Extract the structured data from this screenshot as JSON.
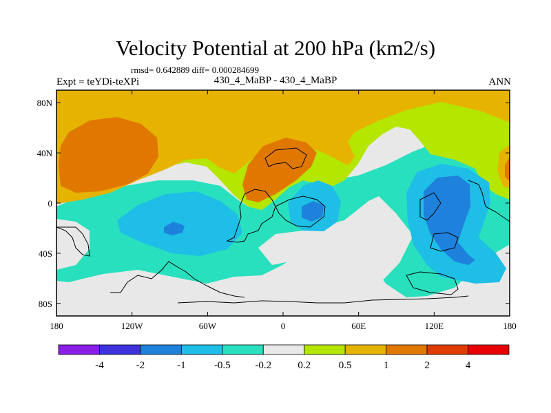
{
  "chart_data": {
    "type": "heatmap",
    "title": "Velocity Potential at 200 hPa (km2/s)",
    "stats_line": "rmsd= 0.642889 diff= 0.000284699",
    "left_label": "Expt = teYDi-teXPi",
    "center_label": "430_4_MaBP - 430_4_MaBP",
    "right_label": "ANN",
    "x_axis": {
      "ticks": [
        -180,
        -120,
        -60,
        0,
        60,
        120,
        180
      ],
      "tick_labels": [
        "180",
        "120W",
        "60W",
        "0",
        "60E",
        "120E",
        "180"
      ],
      "range": [
        -180,
        180
      ]
    },
    "y_axis": {
      "ticks": [
        80,
        40,
        0,
        -40,
        -80
      ],
      "tick_labels": [
        "80N",
        "40N",
        "0",
        "40S",
        "80S"
      ],
      "range": [
        -90,
        90
      ]
    },
    "colorbar": {
      "levels": [
        "-4",
        "-2",
        "-1",
        "-0.5",
        "-0.2",
        "0.2",
        "0.5",
        "1",
        "2",
        "4"
      ],
      "colors": [
        "#8a1ee6",
        "#3c32dc",
        "#1e82dc",
        "#1ebee6",
        "#28e0be",
        "#e8e8e8",
        "#b4e600",
        "#e6b400",
        "#e07800",
        "#e03c00",
        "#e60000"
      ]
    },
    "regions": [
      {
        "name": "positive-north-band",
        "level_range": "0.2 to 0.5"
      },
      {
        "name": "north-pacific-maximum",
        "level_range": "0.5 to 1"
      },
      {
        "name": "north-pacific-center",
        "level_range": "1 to 2"
      },
      {
        "name": "africa-maximum",
        "level_range": "1 to 2"
      },
      {
        "name": "south-pacific-minimum",
        "level_range": "-1 to -0.5"
      },
      {
        "name": "africa-minimum",
        "level_range": "-2 to -1"
      },
      {
        "name": "maritime-continent-minimum",
        "level_range": "-2 to -1"
      },
      {
        "name": "southern-ocean-band",
        "level_range": "-0.5 to -0.2"
      }
    ]
  }
}
